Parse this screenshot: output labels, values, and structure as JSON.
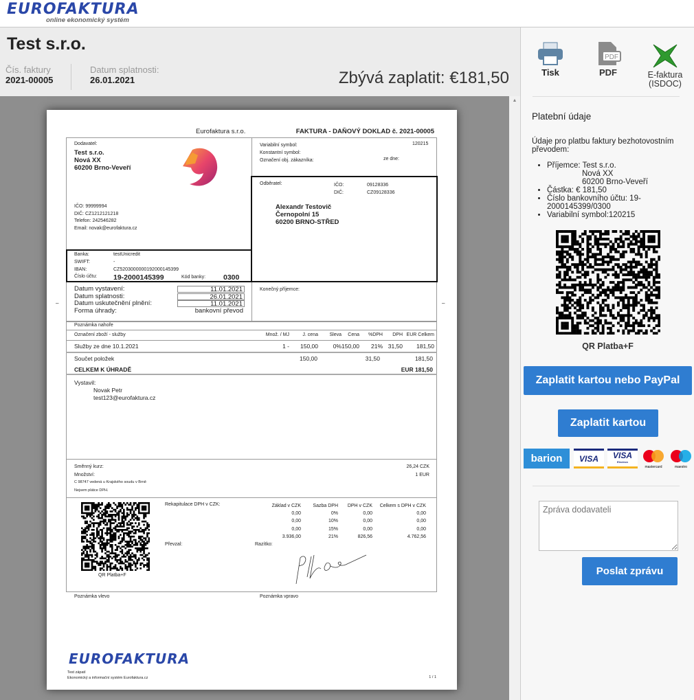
{
  "brand": {
    "logo": "EUROFAKTURA",
    "tagline": "online ekonomický systém"
  },
  "header": {
    "company": "Test s.r.o.",
    "invoice_no_label": "Čís. faktury",
    "invoice_no": "2021-00005",
    "due_label": "Datum splatnosti:",
    "due": "26.01.2021",
    "remaining": "Zbývá zaplatit: €181,50"
  },
  "invoice": {
    "issuer_top": "Eurofaktura s.r.o.",
    "title": "FAKTURA - DAŇOVÝ DOKLAD č. 2021-00005",
    "supplier_label": "Dodavatel:",
    "supplier": [
      "Test s.r.o.",
      "Nová XX",
      "60200 Brno-Veveří"
    ],
    "supplier_ids": [
      "IČO: 99999994",
      "DIČ: CZ1212121218",
      "Telefon: 242546282",
      "Email: novak@eurofaktura.cz"
    ],
    "vs_label": "Variabilní symbol:",
    "vs": "120215",
    "ks_label": "Konstantní symbol:",
    "order_label": "Označení obj. zákazníka:",
    "order_date_label": "ze dne:",
    "customer_label": "Odběratel:",
    "ico_label": "IČO:",
    "ico": "09128336",
    "dic_label": "DIČ:",
    "dic": "CZ09128336",
    "customer": [
      "Alexandr Testovič",
      "Černopolní 15",
      "60200 BRNO-STŘED"
    ],
    "bank_label": "Banka:",
    "bank": "testUnicredit",
    "swift_label": "SWIFT:",
    "swift": "-",
    "iban_label": "IBAN:",
    "iban": "CZ5203000000192000145399",
    "acc_label": "Číslo účtu:",
    "acc": "19-2000145399",
    "bank_code_label": "Kód banky:",
    "bank_code": "0300",
    "dates": [
      {
        "label": "Datum vystavení:",
        "value": "11.01.2021"
      },
      {
        "label": "Datum splatnosti:",
        "value": "26.01.2021"
      },
      {
        "label": "Datum uskutečnění plnění:",
        "value": "11.01.2021"
      },
      {
        "label": "Forma úhrady:",
        "value": "bankovní převod"
      }
    ],
    "final_recipient_label": "Konečný příjemce:",
    "note_top": "Poznámka nahoře",
    "columns": [
      "Označení zboží - služby",
      "Množ. / MJ",
      "J. cena",
      "Sleva",
      "Cena",
      "%DPH",
      "DPH",
      "EUR Celkem"
    ],
    "items": [
      [
        "Služby ze dne 10.1.2021",
        "1 -",
        "150,00",
        "0%",
        "150,00",
        "21%",
        "31,50",
        "181,50"
      ]
    ],
    "sum_label": "Součet položek",
    "sum_price": "150,00",
    "sum_vat": "31,50",
    "sum_total": "181,50",
    "total_label": "CELKEM K ÚHRADĚ",
    "total": "EUR 181,50",
    "issued_by_label": "Vystavil:",
    "issued_by": [
      "Novak Petr",
      "test123@eurofaktura.cz"
    ],
    "rate_label": "Směnný kurz:",
    "rate": "26,24 CZK",
    "qty_label": "Množství:",
    "qty": "1 EUR",
    "court": "C 98747 vedená u Krajského soudu v Brně",
    "not_vat": "Nejsem plátce DPH.",
    "qr_caption": "QR Platba+F",
    "recap_label": "Rekapitulace DPH v CZK:",
    "recap_cols": [
      "Základ v CZK",
      "Sazba DPH",
      "DPH v CZK",
      "Celkem s DPH v CZK"
    ],
    "recap_rows": [
      [
        "0,00",
        "0%",
        "0,00",
        "0,00"
      ],
      [
        "0,00",
        "10%",
        "0,00",
        "0,00"
      ],
      [
        "0,00",
        "15%",
        "0,00",
        "0,00"
      ],
      [
        "3.936,00",
        "21%",
        "826,56",
        "4.762,56"
      ]
    ],
    "received_label": "Převzal:",
    "stamp_label": "Razítko:",
    "note_left": "Poznámka vlevo",
    "note_right": "Poznámka vpravo",
    "footer_logo": "EUROFAKTURA",
    "footer_text": [
      "Test zápatí",
      "Ekonomický a informační systém Eurofaktura.cz"
    ],
    "page": "1 / 1"
  },
  "side": {
    "print": "Tisk",
    "pdf": "PDF",
    "efaktura": "E-faktura",
    "isdoc": "(ISDOC)",
    "pay_title": "Platební údaje",
    "pay_intro": "Údaje pro platbu faktury bezhotovostním převodem:",
    "recipient": "Příjemce: Test s.r.o.",
    "recipient2": "Nová XX",
    "recipient3": "60200 Brno-Veveří",
    "amount": "Částka: € 181,50",
    "account": "Číslo bankovního účtu: 19-2000145399/0300",
    "vs": "Variabilní symbol:120215",
    "qr_caption": "QR Platba+F",
    "pay_card_paypal": "Zaplatit kartou nebo PayPal",
    "pay_card": "Zaplatit kartou",
    "cards": [
      "barion",
      "VISA",
      "VISA",
      "mastercard",
      "maestro"
    ],
    "visa_electron": "Electron",
    "message_placeholder": "Zpráva dodavateli",
    "send": "Poslat zprávu"
  },
  "colors": {
    "accent": "#2f7dd1",
    "brand": "#2a47a8"
  }
}
